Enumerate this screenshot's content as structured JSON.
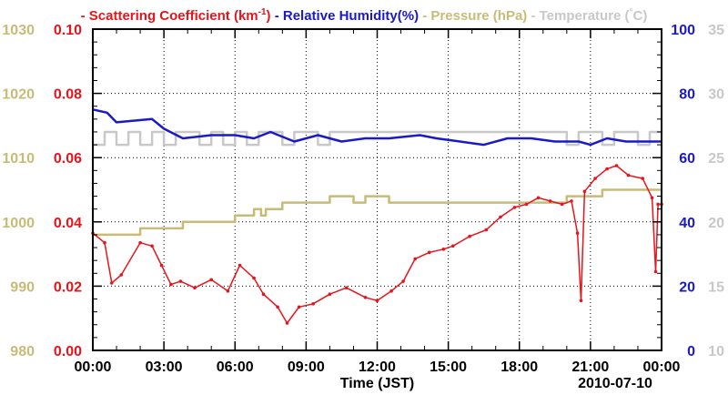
{
  "chart_data": {
    "type": "line",
    "date_label": "2010-07-10",
    "xlabel": "Time (JST)",
    "x_ticks": [
      "00:00",
      "03:00",
      "06:00",
      "09:00",
      "12:00",
      "15:00",
      "18:00",
      "21:00",
      "00:00"
    ],
    "x_unit": "hours",
    "x_range": [
      0,
      24
    ],
    "legend": [
      {
        "prefix": "- ",
        "text": "Scattering Coefficient (km",
        "sup": "-1",
        "suffix": ")",
        "color": "#e8141c"
      },
      {
        "prefix": " - ",
        "text": "Relative Humidity(%)",
        "sup": "",
        "suffix": "",
        "color": "#1a1ac8"
      },
      {
        "prefix": " - ",
        "text": "Pressure (hPa)",
        "sup": "",
        "suffix": "",
        "color": "#c8bb78"
      },
      {
        "prefix": " - ",
        "text": "Temperature (",
        "sup": "°",
        "suffix": "C)",
        "color": "#c8c8c8"
      }
    ],
    "axes": {
      "pressure": {
        "range": [
          980,
          1030
        ],
        "ticks": [
          "1030",
          "1020",
          "1010",
          "1000",
          "990",
          "980"
        ],
        "color": "#c8bb78"
      },
      "scattering": {
        "range": [
          0,
          0.1
        ],
        "ticks": [
          "0.10",
          "0.08",
          "0.06",
          "0.04",
          "0.02",
          "0.00"
        ],
        "color": "#e8141c"
      },
      "humidity": {
        "range": [
          0,
          100
        ],
        "ticks": [
          "100",
          "80",
          "60",
          "40",
          "20",
          "0"
        ],
        "color": "#1a1ac8"
      },
      "temperature": {
        "range": [
          10,
          35
        ],
        "ticks": [
          "35",
          "30",
          "25",
          "20",
          "15",
          "10"
        ],
        "color": "#c8c8c8"
      }
    },
    "series": [
      {
        "name": "Scattering Coefficient",
        "axis": "scattering",
        "color": "#e8141c",
        "markers": true,
        "x": [
          0,
          0.5,
          0.8,
          1.2,
          2.0,
          2.5,
          2.9,
          3.3,
          3.7,
          4.3,
          5.0,
          5.7,
          6.2,
          6.8,
          7.2,
          7.8,
          8.2,
          8.7,
          9.3,
          10.0,
          10.7,
          11.5,
          12.0,
          12.6,
          13.1,
          13.6,
          14.2,
          14.8,
          15.2,
          15.9,
          16.6,
          17.2,
          17.8,
          18.3,
          18.8,
          19.3,
          19.8,
          20.2,
          20.45,
          20.6,
          20.75,
          21.2,
          21.7,
          22.1,
          22.6,
          23.2,
          23.6,
          23.75,
          23.85,
          24.0
        ],
        "y": [
          0.0365,
          0.0335,
          0.021,
          0.0235,
          0.0335,
          0.0325,
          0.0265,
          0.0205,
          0.0215,
          0.0195,
          0.022,
          0.0185,
          0.0265,
          0.0225,
          0.0175,
          0.0135,
          0.0085,
          0.0135,
          0.0145,
          0.0175,
          0.0195,
          0.0165,
          0.0155,
          0.0185,
          0.0215,
          0.0285,
          0.0305,
          0.0315,
          0.0325,
          0.0355,
          0.0375,
          0.0415,
          0.0445,
          0.0455,
          0.0475,
          0.0465,
          0.0455,
          0.0465,
          0.0365,
          0.0155,
          0.0495,
          0.0535,
          0.0565,
          0.0575,
          0.0545,
          0.0535,
          0.0475,
          0.0245,
          0.0455,
          0.0455
        ]
      },
      {
        "name": "Relative Humidity",
        "axis": "humidity",
        "color": "#1a1ac8",
        "markers": false,
        "x": [
          0,
          0.6,
          1.0,
          2.5,
          3.0,
          3.8,
          5.0,
          6.0,
          6.8,
          7.5,
          8.5,
          9.5,
          10.5,
          11.5,
          12.5,
          13.8,
          14.5,
          15.5,
          16.5,
          17.5,
          18.5,
          19.5,
          20.5,
          21.0,
          21.7,
          22.5,
          23.5,
          24.0
        ],
        "y": [
          75,
          74,
          71,
          72,
          69,
          66,
          67,
          67,
          66,
          68,
          65,
          67,
          65,
          66,
          66,
          67,
          66,
          65,
          64,
          66,
          66,
          65,
          65,
          64,
          66,
          65,
          65,
          65
        ]
      },
      {
        "name": "Pressure",
        "axis": "pressure",
        "color": "#c8bb78",
        "markers": false,
        "step": true,
        "x": [
          0,
          2.0,
          3.8,
          6.0,
          6.8,
          7.1,
          7.3,
          8.0,
          10.0,
          11.0,
          11.5,
          12.5,
          13.5,
          16.0,
          18.0,
          20.0,
          21.5,
          23.0,
          24.0
        ],
        "y": [
          998,
          999,
          1000,
          1001,
          1002,
          1001,
          1002,
          1003,
          1004,
          1003,
          1004,
          1003,
          1003,
          1003,
          1003,
          1004,
          1005,
          1005,
          1005
        ]
      },
      {
        "name": "Temperature",
        "axis": "temperature",
        "color": "#c8c8c8",
        "markers": false,
        "step": true,
        "x": [
          0,
          0.5,
          1.0,
          1.5,
          2.0,
          2.5,
          3.0,
          3.5,
          4.0,
          4.5,
          5.0,
          5.5,
          6.0,
          6.5,
          7.0,
          7.5,
          8.0,
          8.5,
          9.0,
          9.5,
          10.0,
          12.0,
          14.0,
          16.0,
          18.0,
          19.5,
          20.0,
          20.5,
          21.0,
          21.5,
          22.0,
          22.5,
          23.0,
          23.5,
          24.0
        ],
        "y": [
          26,
          27,
          26,
          27,
          26,
          27,
          26,
          27,
          27,
          26,
          27,
          26,
          27,
          26,
          27,
          27,
          26,
          27,
          27,
          26,
          27,
          27,
          27,
          27,
          27,
          27,
          26,
          27,
          27,
          26,
          27,
          27,
          26,
          27,
          27
        ]
      }
    ],
    "grid": true
  }
}
